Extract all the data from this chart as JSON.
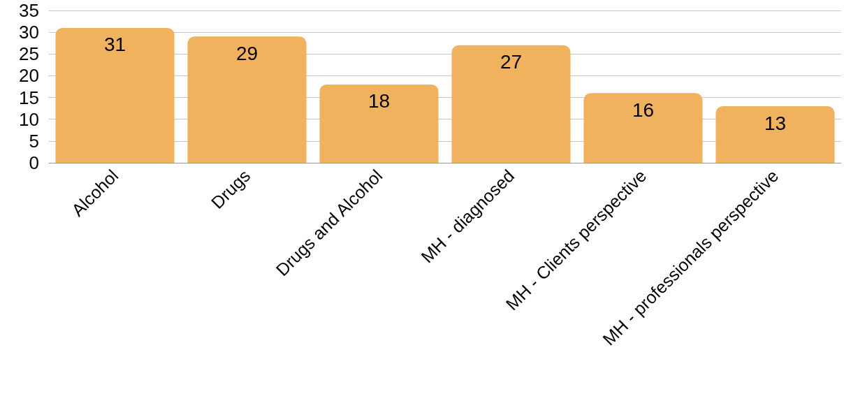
{
  "chart_data": {
    "type": "bar",
    "categories": [
      "Alcohol",
      "Drugs",
      "Drugs and Alcohol",
      "MH - diagnosed",
      "MH - Clients perspective",
      "MH - professionals perspective"
    ],
    "values": [
      31,
      29,
      18,
      27,
      16,
      13
    ],
    "color": "#f0b25e",
    "ylim": [
      0,
      35
    ],
    "yticks": [
      0,
      5,
      10,
      15,
      20,
      25,
      30,
      35
    ],
    "grid": "y",
    "data_labels": true
  }
}
